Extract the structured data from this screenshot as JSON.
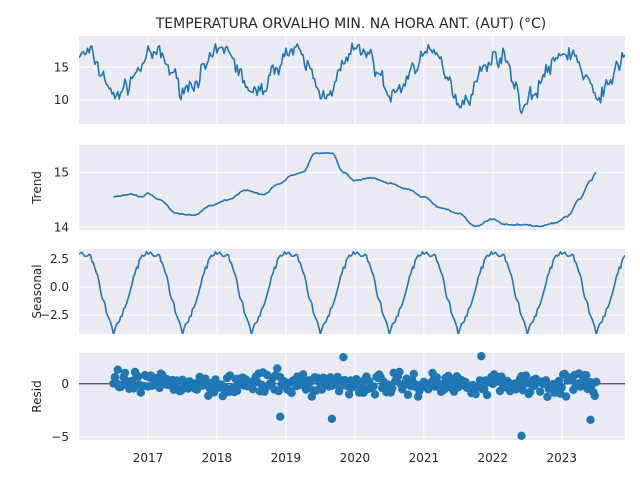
{
  "chart_data": {
    "type": "line",
    "title": "TEMPERATURA ORVALHO MIN. NA HORA ANT. (AUT) (°C)",
    "x_start": "2016-01",
    "x_end": "2023-12",
    "x_tick_labels": [
      "2017",
      "2018",
      "2019",
      "2020",
      "2021",
      "2022",
      "2023"
    ],
    "panels": [
      {
        "name": "observed",
        "ylabel": "",
        "kind": "line",
        "ylim": [
          6.3,
          19.8
        ],
        "yticks": [
          10,
          15
        ],
        "series_name": "",
        "anchors": [
          {
            "x": "2016-01",
            "y": 16.8
          },
          {
            "x": "2016-03",
            "y": 17.3
          },
          {
            "x": "2016-05",
            "y": 14.0
          },
          {
            "x": "2016-07",
            "y": 10.5
          },
          {
            "x": "2016-09",
            "y": 11.8
          },
          {
            "x": "2016-11",
            "y": 14.2
          },
          {
            "x": "2017-01",
            "y": 16.8
          },
          {
            "x": "2017-03",
            "y": 17.2
          },
          {
            "x": "2017-05",
            "y": 14.5
          },
          {
            "x": "2017-07",
            "y": 11.5
          },
          {
            "x": "2017-09",
            "y": 12.5
          },
          {
            "x": "2017-11",
            "y": 15.0
          },
          {
            "x": "2018-01",
            "y": 17.5
          },
          {
            "x": "2018-03",
            "y": 17.8
          },
          {
            "x": "2018-05",
            "y": 14.0
          },
          {
            "x": "2018-07",
            "y": 10.8
          },
          {
            "x": "2018-09",
            "y": 11.8
          },
          {
            "x": "2018-11",
            "y": 14.5
          },
          {
            "x": "2019-01",
            "y": 17.2
          },
          {
            "x": "2019-03",
            "y": 17.5
          },
          {
            "x": "2019-05",
            "y": 15.0
          },
          {
            "x": "2019-07",
            "y": 10.8
          },
          {
            "x": "2019-09",
            "y": 11.5
          },
          {
            "x": "2019-11",
            "y": 15.5
          },
          {
            "x": "2020-01",
            "y": 17.8
          },
          {
            "x": "2020-03",
            "y": 17.5
          },
          {
            "x": "2020-05",
            "y": 14.5
          },
          {
            "x": "2020-07",
            "y": 10.5
          },
          {
            "x": "2020-09",
            "y": 11.8
          },
          {
            "x": "2020-11",
            "y": 14.8
          },
          {
            "x": "2021-01",
            "y": 17.0
          },
          {
            "x": "2021-03",
            "y": 17.2
          },
          {
            "x": "2021-05",
            "y": 14.0
          },
          {
            "x": "2021-07",
            "y": 9.5
          },
          {
            "x": "2021-09",
            "y": 10.5
          },
          {
            "x": "2021-11",
            "y": 14.5
          },
          {
            "x": "2022-01",
            "y": 16.5
          },
          {
            "x": "2022-03",
            "y": 16.5
          },
          {
            "x": "2022-05",
            "y": 12.5
          },
          {
            "x": "2022-06",
            "y": 8.5
          },
          {
            "x": "2022-08",
            "y": 11.0
          },
          {
            "x": "2022-11",
            "y": 15.0
          },
          {
            "x": "2023-01",
            "y": 17.0
          },
          {
            "x": "2023-03",
            "y": 17.2
          },
          {
            "x": "2023-05",
            "y": 13.5
          },
          {
            "x": "2023-07",
            "y": 10.5
          },
          {
            "x": "2023-09",
            "y": 12.0
          },
          {
            "x": "2023-11",
            "y": 15.5
          },
          {
            "x": "2023-12",
            "y": 17.2
          }
        ]
      },
      {
        "name": "trend",
        "ylabel": "Trend",
        "kind": "line",
        "ylim": [
          13.95,
          15.5
        ],
        "yticks": [
          14,
          15
        ],
        "series_name": "",
        "anchors": [
          {
            "x": "2016-07",
            "y": 14.56
          },
          {
            "x": "2016-10",
            "y": 14.6
          },
          {
            "x": "2016-12",
            "y": 14.55
          },
          {
            "x": "2017-01",
            "y": 14.62
          },
          {
            "x": "2017-03",
            "y": 14.5
          },
          {
            "x": "2017-06",
            "y": 14.25
          },
          {
            "x": "2017-09",
            "y": 14.22
          },
          {
            "x": "2017-12",
            "y": 14.4
          },
          {
            "x": "2018-03",
            "y": 14.5
          },
          {
            "x": "2018-06",
            "y": 14.68
          },
          {
            "x": "2018-09",
            "y": 14.6
          },
          {
            "x": "2018-12",
            "y": 14.8
          },
          {
            "x": "2019-02",
            "y": 14.95
          },
          {
            "x": "2019-04",
            "y": 15.0
          },
          {
            "x": "2019-06",
            "y": 15.35
          },
          {
            "x": "2019-09",
            "y": 15.35
          },
          {
            "x": "2019-11",
            "y": 15.0
          },
          {
            "x": "2020-01",
            "y": 14.85
          },
          {
            "x": "2020-04",
            "y": 14.9
          },
          {
            "x": "2020-07",
            "y": 14.8
          },
          {
            "x": "2020-10",
            "y": 14.7
          },
          {
            "x": "2021-01",
            "y": 14.55
          },
          {
            "x": "2021-04",
            "y": 14.35
          },
          {
            "x": "2021-07",
            "y": 14.25
          },
          {
            "x": "2021-10",
            "y": 14.02
          },
          {
            "x": "2022-01",
            "y": 14.15
          },
          {
            "x": "2022-03",
            "y": 14.05
          },
          {
            "x": "2022-06",
            "y": 14.05
          },
          {
            "x": "2022-09",
            "y": 14.02
          },
          {
            "x": "2022-12",
            "y": 14.08
          },
          {
            "x": "2023-02",
            "y": 14.2
          },
          {
            "x": "2023-04",
            "y": 14.5
          },
          {
            "x": "2023-06",
            "y": 14.85
          },
          {
            "x": "2023-07",
            "y": 15.0
          }
        ]
      },
      {
        "name": "seasonal",
        "ylabel": "Seasonal",
        "kind": "line",
        "ylim": [
          -4.2,
          3.4
        ],
        "yticks": [
          2.5,
          0.0,
          -2.5
        ],
        "series_name": "",
        "amplitude": 3.1
      },
      {
        "name": "resid",
        "ylabel": "Resid",
        "kind": "scatter",
        "ylim": [
          -5.3,
          2.9
        ],
        "yticks": [
          0,
          -5
        ],
        "series_name": "",
        "notable_points": [
          {
            "x": "2022-06",
            "y": -4.9
          },
          {
            "x": "2023-06",
            "y": -3.4
          },
          {
            "x": "2019-09",
            "y": -3.3
          },
          {
            "x": "2018-12",
            "y": -3.1
          },
          {
            "x": "2019-11",
            "y": 2.5
          },
          {
            "x": "2021-11",
            "y": 2.6
          }
        ]
      }
    ],
    "grid": true
  }
}
